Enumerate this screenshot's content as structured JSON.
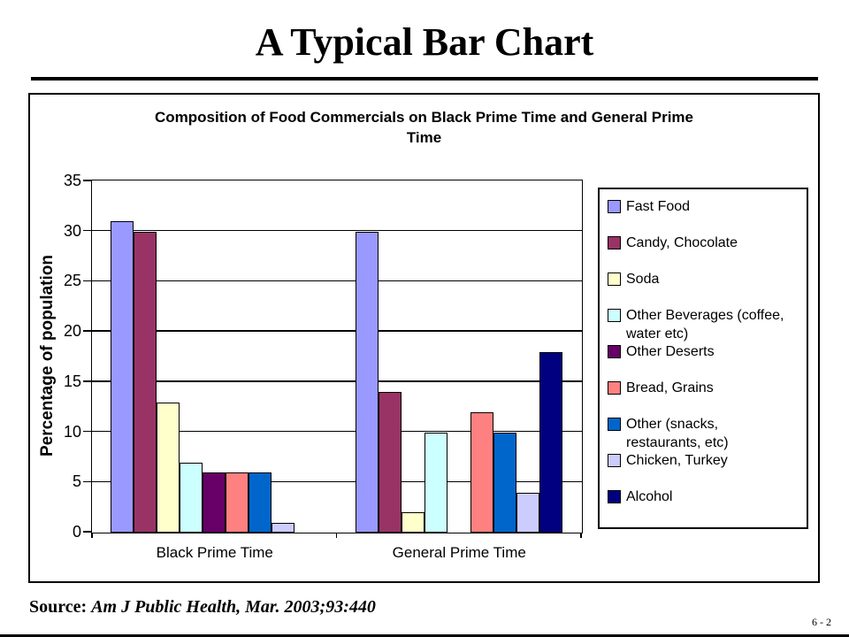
{
  "slide": {
    "title": "A Typical Bar Chart",
    "source_label": "Source:",
    "source_citation": "Am J Public Health, Mar. 2003;93:440",
    "page_number": "6 - 2"
  },
  "chart_data": {
    "type": "bar",
    "title": "Composition of Food Commercials on Black Prime Time and General Prime\nTime",
    "xlabel": "",
    "ylabel": "Percentage of population",
    "ylim": [
      0,
      35
    ],
    "yticks": [
      0,
      5,
      10,
      15,
      20,
      25,
      30,
      35
    ],
    "grid": true,
    "legend_position": "right",
    "categories": [
      "Black Prime Time",
      "General Prime Time"
    ],
    "series": [
      {
        "name": "Fast Food",
        "color": "#9999FF",
        "values": [
          31,
          30
        ]
      },
      {
        "name": "Candy, Chocolate",
        "color": "#993366",
        "values": [
          30,
          14
        ]
      },
      {
        "name": "Soda",
        "color": "#FFFFCC",
        "values": [
          13,
          2
        ]
      },
      {
        "name": "Other Beverages (coffee,\nwater etc)",
        "color": "#CCFFFF",
        "values": [
          7,
          10
        ]
      },
      {
        "name": "Other Deserts",
        "color": "#660066",
        "values": [
          6,
          0
        ]
      },
      {
        "name": "Bread, Grains",
        "color": "#FF8080",
        "values": [
          6,
          12
        ]
      },
      {
        "name": "Other (snacks,\nrestaurants, etc)",
        "color": "#0066CC",
        "values": [
          6,
          10
        ]
      },
      {
        "name": "Chicken, Turkey",
        "color": "#CCCCFF",
        "values": [
          1,
          4
        ]
      },
      {
        "name": "Alcohol",
        "color": "#000080",
        "values": [
          0,
          18
        ]
      }
    ]
  }
}
